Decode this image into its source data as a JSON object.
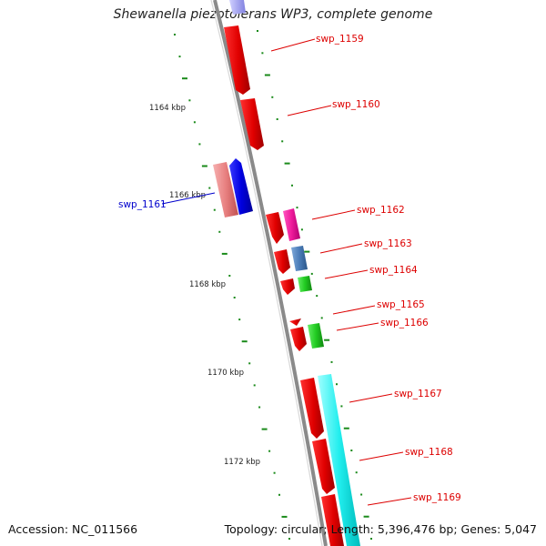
{
  "title": "Shewanella piezotolerans WP3, complete genome",
  "footer": {
    "accession": "Accession: NC_011566",
    "summary": "Topology: circular; Length: 5,396,476 bp; Genes: 5,047"
  },
  "kbp_labels": [
    "1164 kbp",
    "1166 kbp",
    "1168 kbp",
    "1170 kbp",
    "1172 kbp"
  ],
  "genes": [
    {
      "name": "swp_1159",
      "color": "#dd0000"
    },
    {
      "name": "swp_1160",
      "color": "#dd0000"
    },
    {
      "name": "swp_1161",
      "color": "#0000cc"
    },
    {
      "name": "swp_1162",
      "color": "#dd0000"
    },
    {
      "name": "swp_1163",
      "color": "#dd0000"
    },
    {
      "name": "swp_1164",
      "color": "#dd0000"
    },
    {
      "name": "swp_1165",
      "color": "#dd0000"
    },
    {
      "name": "swp_1166",
      "color": "#dd0000"
    },
    {
      "name": "swp_1167",
      "color": "#dd0000"
    },
    {
      "name": "swp_1168",
      "color": "#dd0000"
    },
    {
      "name": "swp_1169",
      "color": "#dd0000"
    }
  ]
}
